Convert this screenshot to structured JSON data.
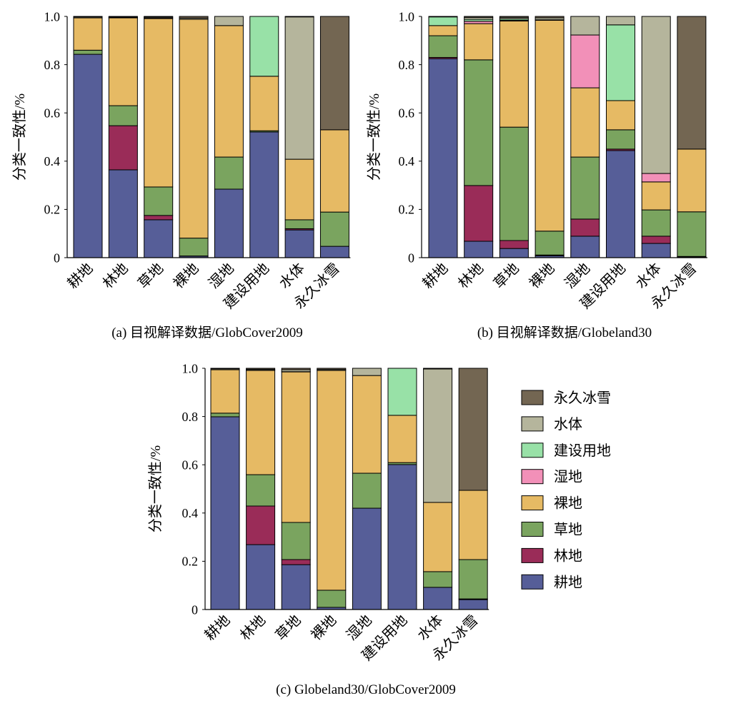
{
  "colors": {
    "耕地": "#565e98",
    "林地": "#9a2c58",
    "草地": "#7aa45f",
    "裸地": "#e6ba64",
    "湿地": "#f290b8",
    "建设用地": "#98e1a7",
    "水体": "#b5b59c",
    "永久冰雪": "#736652",
    "outline": "#000000"
  },
  "legend": {
    "placement": "right",
    "items": [
      {
        "name": "永久冰雪"
      },
      {
        "name": "水体"
      },
      {
        "name": "建设用地"
      },
      {
        "name": "湿地"
      },
      {
        "name": "裸地"
      },
      {
        "name": "草地"
      },
      {
        "name": "林地"
      },
      {
        "name": "耕地"
      }
    ]
  },
  "chart_data": [
    {
      "type": "bar",
      "stacked": true,
      "caption": "(a) 目视解译数据/GlobCover2009",
      "ylabel": "分类一致性/%",
      "ylim": [
        0,
        1.0
      ],
      "yticks": [
        "0",
        "0.2",
        "0.4",
        "0.6",
        "0.8",
        "1.0"
      ],
      "grid": false,
      "categories": [
        "耕地",
        "林地",
        "草地",
        "裸地",
        "湿地",
        "建设用地",
        "水体",
        "永久冰雪"
      ],
      "series": [
        {
          "name": "耕地",
          "values": [
            0.843,
            0.364,
            0.157,
            0.006,
            0.284,
            0.521,
            0.115,
            0.047
          ]
        },
        {
          "name": "林地",
          "values": [
            0.0,
            0.183,
            0.018,
            0.001,
            0.0,
            0.0,
            0.005,
            0.0
          ]
        },
        {
          "name": "草地",
          "values": [
            0.017,
            0.083,
            0.118,
            0.074,
            0.133,
            0.005,
            0.037,
            0.142
          ]
        },
        {
          "name": "裸地",
          "values": [
            0.134,
            0.364,
            0.698,
            0.907,
            0.545,
            0.226,
            0.251,
            0.341
          ]
        },
        {
          "name": "湿地",
          "values": [
            0.0,
            0.0,
            0.003,
            0.0,
            0.0,
            0.0,
            0.0,
            0.0
          ]
        },
        {
          "name": "建设用地",
          "values": [
            0.0,
            0.001,
            0.0,
            0.0,
            0.0,
            0.248,
            0.0,
            0.0
          ]
        },
        {
          "name": "水体",
          "values": [
            0.004,
            0.003,
            0.004,
            0.005,
            0.038,
            0.0,
            0.59,
            0.0
          ]
        },
        {
          "name": "永久冰雪",
          "values": [
            0.002,
            0.002,
            0.002,
            0.007,
            0.0,
            0.0,
            0.002,
            0.47
          ]
        }
      ]
    },
    {
      "type": "bar",
      "stacked": true,
      "caption": "(b) 目视解译数据/Globeland30",
      "ylabel": "分类一致性/%",
      "ylim": [
        0,
        1.0
      ],
      "yticks": [
        "0",
        "0.2",
        "0.4",
        "0.6",
        "0.8",
        "1.0"
      ],
      "grid": false,
      "categories": [
        "耕地",
        "林地",
        "草地",
        "裸地",
        "湿地",
        "建设用地",
        "水体",
        "永久冰雪"
      ],
      "series": [
        {
          "name": "耕地",
          "values": [
            0.825,
            0.068,
            0.038,
            0.008,
            0.089,
            0.444,
            0.059,
            0.003
          ]
        },
        {
          "name": "林地",
          "values": [
            0.005,
            0.231,
            0.033,
            0.003,
            0.071,
            0.006,
            0.03,
            0.002
          ]
        },
        {
          "name": "草地",
          "values": [
            0.09,
            0.521,
            0.47,
            0.099,
            0.257,
            0.08,
            0.109,
            0.185
          ]
        },
        {
          "name": "裸地",
          "values": [
            0.042,
            0.15,
            0.44,
            0.874,
            0.287,
            0.121,
            0.116,
            0.26
          ]
        },
        {
          "name": "湿地",
          "values": [
            0.0,
            0.01,
            0.003,
            0.0,
            0.219,
            0.0,
            0.035,
            0.0
          ]
        },
        {
          "name": "建设用地",
          "values": [
            0.036,
            0.008,
            0.006,
            0.002,
            0.0,
            0.314,
            0.0,
            0.0
          ]
        },
        {
          "name": "水体",
          "values": [
            0.002,
            0.008,
            0.006,
            0.008,
            0.077,
            0.035,
            0.651,
            0.0
          ]
        },
        {
          "name": "永久冰雪",
          "values": [
            0.0,
            0.004,
            0.004,
            0.006,
            0.0,
            0.0,
            0.0,
            0.55
          ]
        }
      ]
    },
    {
      "type": "bar",
      "stacked": true,
      "caption": "(c) Globeland30/GlobCover2009",
      "ylabel": "分类一致性/%",
      "ylim": [
        0,
        1.0
      ],
      "yticks": [
        "0",
        "0.2",
        "0.4",
        "0.6",
        "0.8",
        "1.0"
      ],
      "grid": false,
      "categories": [
        "耕地",
        "林地",
        "草地",
        "裸地",
        "湿地",
        "建设用地",
        "水体",
        "永久冰雪"
      ],
      "series": [
        {
          "name": "耕地",
          "values": [
            0.799,
            0.269,
            0.186,
            0.009,
            0.42,
            0.601,
            0.092,
            0.041
          ]
        },
        {
          "name": "林地",
          "values": [
            0.0,
            0.16,
            0.021,
            0.0,
            0.0,
            0.0,
            0.0,
            0.003
          ]
        },
        {
          "name": "草地",
          "values": [
            0.015,
            0.13,
            0.154,
            0.071,
            0.145,
            0.008,
            0.065,
            0.163
          ]
        },
        {
          "name": "裸地",
          "values": [
            0.18,
            0.432,
            0.624,
            0.911,
            0.405,
            0.196,
            0.287,
            0.287
          ]
        },
        {
          "name": "湿地",
          "values": [
            0.0,
            0.0,
            0.0,
            0.0,
            0.0,
            0.0,
            0.0,
            0.0
          ]
        },
        {
          "name": "建设用地",
          "values": [
            0.0,
            0.001,
            0.001,
            0.0,
            0.0,
            0.195,
            0.0,
            0.0
          ]
        },
        {
          "name": "水体",
          "values": [
            0.004,
            0.004,
            0.008,
            0.004,
            0.03,
            0.0,
            0.553,
            0.0
          ]
        },
        {
          "name": "永久冰雪",
          "values": [
            0.002,
            0.004,
            0.006,
            0.005,
            0.0,
            0.0,
            0.003,
            0.506
          ]
        }
      ]
    }
  ]
}
